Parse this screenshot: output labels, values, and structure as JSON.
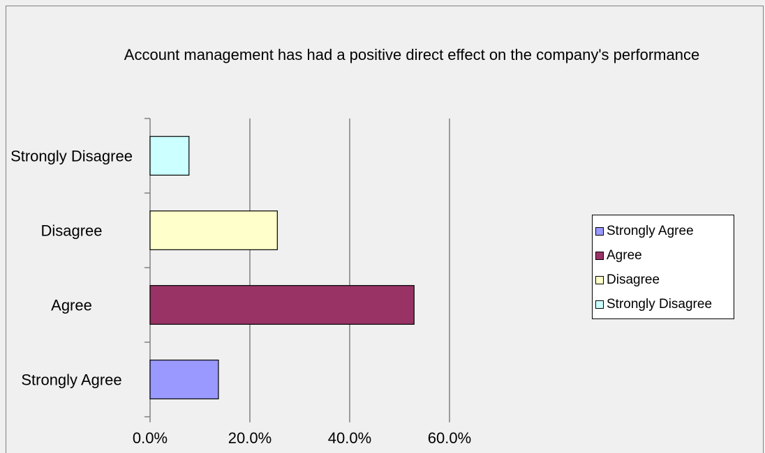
{
  "chart_data": {
    "type": "bar",
    "orientation": "horizontal",
    "title": "Account management has had a positive direct effect on the company's performance",
    "categories": [
      "Strongly Agree",
      "Agree",
      "Disagree",
      "Strongly Disagree"
    ],
    "values": [
      13.7,
      52.9,
      25.5,
      7.8
    ],
    "colors": [
      "#9999ff",
      "#993366",
      "#ffffcc",
      "#ccffff"
    ],
    "xlim": [
      0,
      60
    ],
    "xticks": [
      {
        "value": 0,
        "label": "0.0%"
      },
      {
        "value": 20,
        "label": "20.0%"
      },
      {
        "value": 40,
        "label": "40.0%"
      },
      {
        "value": 60,
        "label": "60.0%"
      }
    ],
    "grid": true,
    "legend": "right"
  }
}
